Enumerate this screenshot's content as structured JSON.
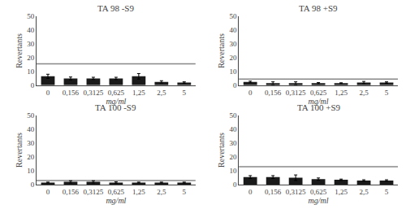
{
  "chart_data": [
    {
      "type": "bar",
      "title": "TA 98 -S9",
      "categories": [
        "0",
        "0,156",
        "0,3125",
        "0,625",
        "1,25",
        "2,5",
        "5"
      ],
      "values": [
        6.5,
        5.0,
        5.0,
        5.0,
        6.5,
        2.5,
        2.0
      ],
      "errors": [
        1.5,
        1.0,
        0.8,
        0.8,
        2.0,
        0.8,
        0.5
      ],
      "hline": {
        "value": 15.5,
        "color": "#888888"
      },
      "color": "#1a1a1a",
      "xlabel": "mg/ml",
      "ylabel": "Revertants",
      "ylim": [
        0,
        50
      ],
      "yticks": [
        0,
        10,
        20,
        30,
        40,
        50
      ],
      "grid": false
    },
    {
      "type": "bar",
      "title": "TA 98 +S9",
      "categories": [
        "0",
        "0,156",
        "0,3125",
        "0,625",
        "1,25",
        "2,5",
        "5"
      ],
      "values": [
        2.5,
        1.5,
        1.5,
        1.5,
        1.5,
        2.0,
        2.0
      ],
      "errors": [
        0.5,
        1.0,
        1.0,
        0.5,
        0.3,
        0.8,
        0.5
      ],
      "hline": {
        "value": 4.5,
        "color": "#888888"
      },
      "color": "#1a1a1a",
      "xlabel": "mg/ml",
      "ylabel": "Revertants",
      "ylim": [
        0,
        50
      ],
      "yticks": [
        0,
        10,
        20,
        30,
        40,
        50
      ],
      "grid": false
    },
    {
      "type": "bar",
      "title": "TA 100 -S9",
      "categories": [
        "0",
        "0,156",
        "0,3125",
        "0,625",
        "1,25",
        "2,5",
        "5"
      ],
      "values": [
        1.5,
        2.0,
        2.0,
        1.5,
        1.5,
        1.5,
        1.5
      ],
      "errors": [
        0.3,
        0.8,
        0.8,
        0.5,
        0.3,
        0.3,
        0.3
      ],
      "hline": {
        "value": 3.0,
        "color": "#888888"
      },
      "color": "#1a1a1a",
      "xlabel": "mg/ml",
      "ylabel": "Revertants",
      "ylim": [
        0,
        50
      ],
      "yticks": [
        0,
        10,
        20,
        30,
        40,
        50
      ],
      "grid": false
    },
    {
      "type": "bar",
      "title": "TA 100 +S9",
      "categories": [
        "0",
        "0,156",
        "0,3125",
        "0,625",
        "1,25",
        "2,5",
        "5"
      ],
      "values": [
        5.5,
        5.5,
        5.0,
        4.0,
        3.5,
        3.0,
        3.0
      ],
      "errors": [
        1.0,
        1.0,
        2.0,
        0.8,
        0.5,
        0.5,
        0.5
      ],
      "hline": {
        "value": 13.0,
        "color": "#888888"
      },
      "color": "#1a1a1a",
      "xlabel": "mg/ml",
      "ylabel": "Revertants",
      "ylim": [
        0,
        50
      ],
      "yticks": [
        0,
        10,
        20,
        30,
        40,
        50
      ],
      "grid": false
    }
  ]
}
